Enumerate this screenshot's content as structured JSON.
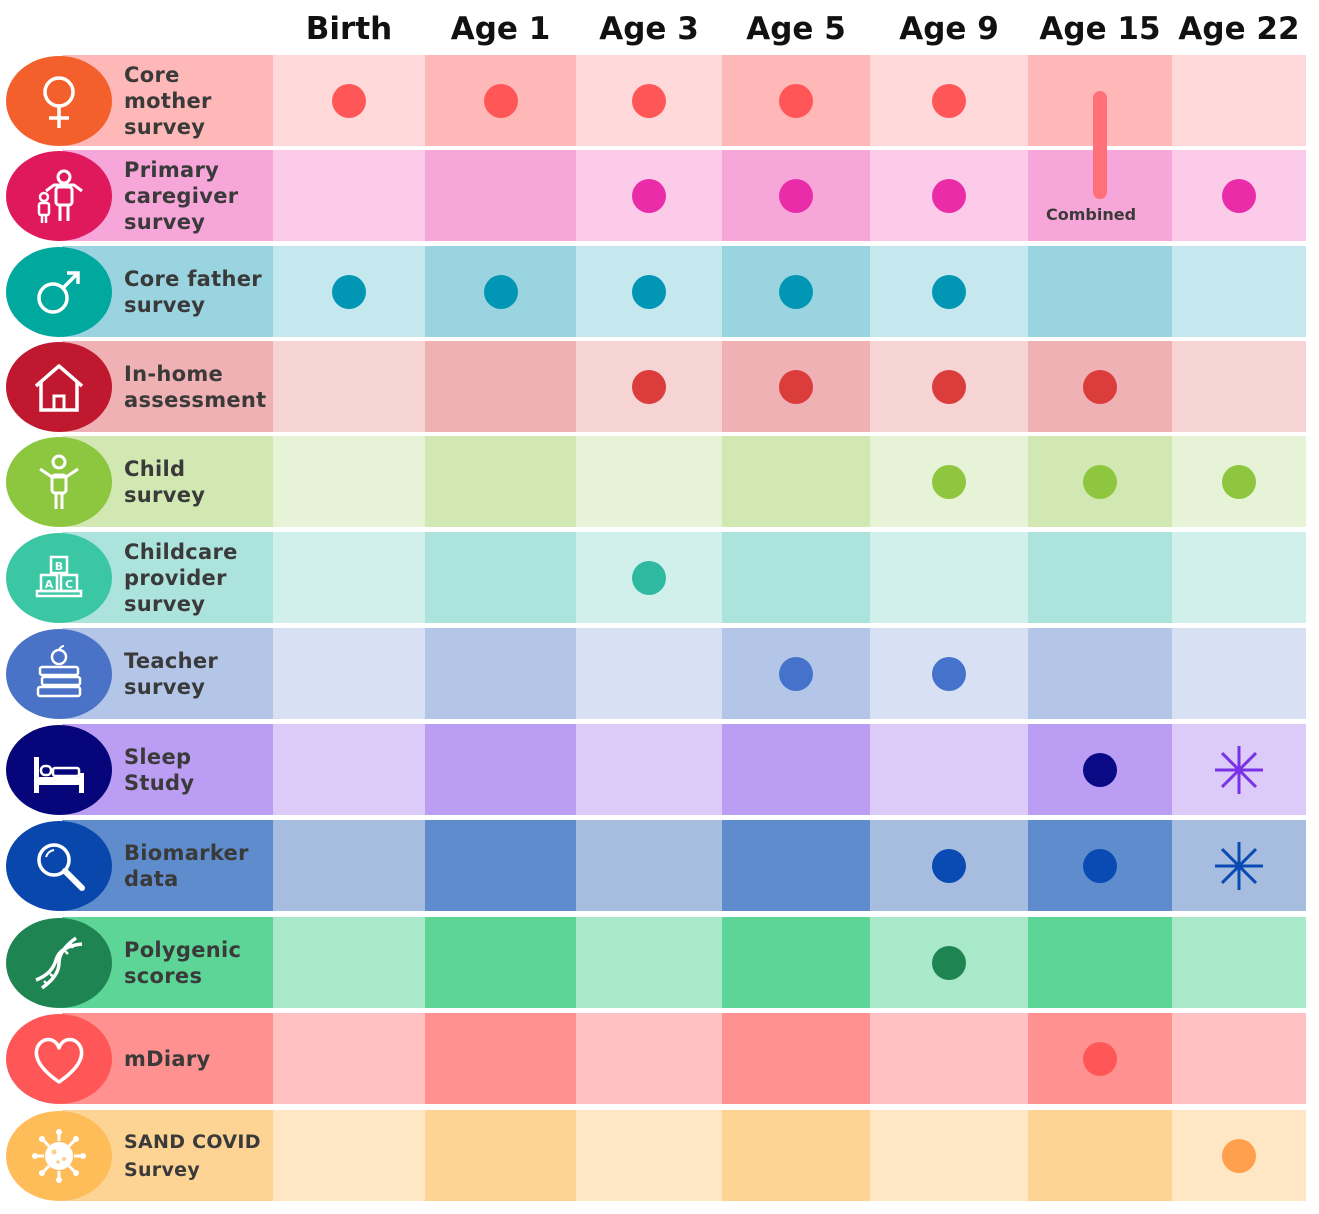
{
  "columns": [
    "Birth",
    "Age 1",
    "Age 3",
    "Age 5",
    "Age 9",
    "Age 15",
    "Age 22"
  ],
  "rows": [
    {
      "label": "Core\nmother\nsurvey",
      "icon": "female-symbol-icon",
      "icon_color": "#f4602c",
      "light": "#ffd9d9",
      "dark": "#ffb8b8",
      "dot_color": "#ff5757",
      "marks": [
        "dot",
        "dot",
        "dot",
        "dot",
        "dot",
        "combined-bar",
        "none"
      ]
    },
    {
      "label": "Primary\ncaregiver\nsurvey",
      "icon": "family-icon",
      "icon_color": "#e0185c",
      "light": "#fccbe9",
      "dark": "#f7a6d9",
      "dot_color": "#eb2ca8",
      "marks": [
        "none",
        "none",
        "dot",
        "dot",
        "dot",
        "combined-label",
        "dot"
      ]
    },
    {
      "label": "Core father\nsurvey",
      "icon": "male-symbol-icon",
      "icon_color": "#01a89e",
      "light": "#c5e7ee",
      "dark": "#9ad4e0",
      "dot_color": "#0096b4",
      "marks": [
        "dot",
        "dot",
        "dot",
        "dot",
        "dot",
        "none",
        "none"
      ]
    },
    {
      "label": "In-home\nassessment",
      "icon": "house-icon",
      "icon_color": "#c0182e",
      "light": "#f6d4d4",
      "dark": "#efb1b3",
      "dot_color": "#db3d3d",
      "marks": [
        "none",
        "none",
        "dot",
        "dot",
        "dot",
        "dot",
        "none"
      ]
    },
    {
      "label": "Child\nsurvey",
      "icon": "child-icon",
      "icon_color": "#8dc63f",
      "light": "#e6f3d6",
      "dark": "#d2e8b3",
      "dot_color": "#8fc63f",
      "marks": [
        "none",
        "none",
        "none",
        "none",
        "dot",
        "dot",
        "dot"
      ]
    },
    {
      "label": "Childcare\nprovider\nsurvey",
      "icon": "abc-blocks-icon",
      "icon_color": "#3cc7a4",
      "light": "#d2f0eb",
      "dark": "#ace3dc",
      "dot_color": "#2fb9a1",
      "marks": [
        "none",
        "none",
        "dot",
        "none",
        "none",
        "none",
        "none"
      ]
    },
    {
      "label": "Teacher\nsurvey",
      "icon": "books-apple-icon",
      "icon_color": "#4a72c7",
      "light": "#d8e0f3",
      "dark": "#b4c6e8",
      "dot_color": "#4573cc",
      "marks": [
        "none",
        "none",
        "none",
        "dot",
        "dot",
        "none",
        "none"
      ]
    },
    {
      "label": "Sleep\nStudy",
      "icon": "bed-icon",
      "icon_color": "#06067a",
      "light": "#dccaf8",
      "dark": "#bc9df4",
      "dot_color": "#0a0a85",
      "star_color": "#7a32e6",
      "marks": [
        "none",
        "none",
        "none",
        "none",
        "none",
        "dot",
        "star"
      ]
    },
    {
      "label": "Biomarker\ndata",
      "icon": "magnifier-icon",
      "icon_color": "#0a47ad",
      "light": "#a7bde0",
      "dark": "#5f8ccd",
      "dot_color": "#0a4ab3",
      "star_color": "#0a4ab3",
      "marks": [
        "none",
        "none",
        "none",
        "none",
        "dot",
        "dot",
        "star"
      ]
    },
    {
      "label": "Polygenic\nscores",
      "icon": "dna-icon",
      "icon_color": "#1e8451",
      "light": "#a7e9c8",
      "dark": "#5cd596",
      "dot_color": "#1e8451",
      "marks": [
        "none",
        "none",
        "none",
        "none",
        "dot",
        "none",
        "none"
      ]
    },
    {
      "label": "mDiary",
      "icon": "heart-icon",
      "icon_color": "#ff5757",
      "light": "#ffc1c1",
      "dark": "#ff9191",
      "dot_color": "#ff5757",
      "marks": [
        "none",
        "none",
        "none",
        "none",
        "none",
        "dot",
        "none"
      ]
    },
    {
      "label": "SAND COVID\nSurvey",
      "icon": "virus-icon",
      "icon_color": "#ffbd59",
      "light": "#ffe6c5",
      "dark": "#fed495",
      "dot_color": "#ffa04f",
      "small": true,
      "marks": [
        "none",
        "none",
        "none",
        "none",
        "none",
        "none",
        "dot"
      ]
    }
  ],
  "combined_label": "Combined"
}
